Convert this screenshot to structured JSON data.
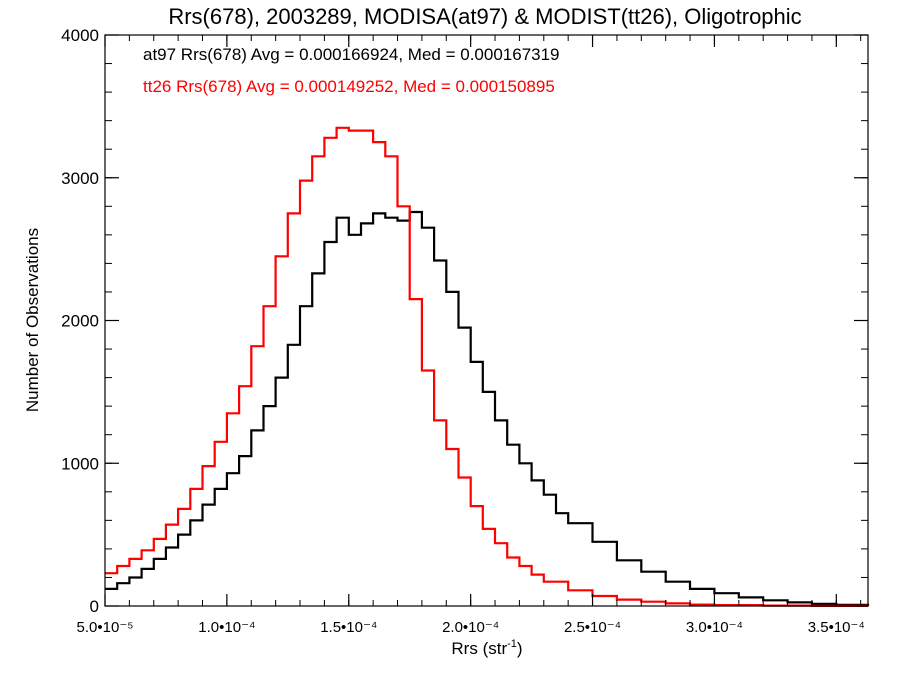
{
  "chart_data": {
    "type": "line",
    "title": "Rrs(678), 2003289, MODISA(at97) & MODIST(tt26), Oligotrophic",
    "xlabel": "Rrs (str",
    "xlabel_sup": "-1",
    "xlabel_close": ")",
    "ylabel": "Number of Observations",
    "xlim": [
      5e-05,
      0.000363
    ],
    "ylim": [
      0,
      4000
    ],
    "x_ticks": [
      {
        "value": 5e-05,
        "label": "5.0•10⁻⁵"
      },
      {
        "value": 0.0001,
        "label": "1.0•10⁻⁴"
      },
      {
        "value": 0.00015,
        "label": "1.5•10⁻⁴"
      },
      {
        "value": 0.0002,
        "label": "2.0•10⁻⁴"
      },
      {
        "value": 0.00025,
        "label": "2.5•10⁻⁴"
      },
      {
        "value": 0.0003,
        "label": "3.0•10⁻⁴"
      },
      {
        "value": 0.00035,
        "label": "3.5•10⁻⁴"
      }
    ],
    "y_ticks": [
      {
        "value": 0,
        "label": "0"
      },
      {
        "value": 1000,
        "label": "1000"
      },
      {
        "value": 2000,
        "label": "2000"
      },
      {
        "value": 3000,
        "label": "3000"
      },
      {
        "value": 4000,
        "label": "4000"
      }
    ],
    "grid": false,
    "series": [
      {
        "name": "at97",
        "color": "#000000",
        "annotation": "at97 Rrs(678) Avg = 0.000166924, Med = 0.000167319",
        "x": [
          5e-05,
          5.5e-05,
          6e-05,
          6.5e-05,
          7e-05,
          7.5e-05,
          8e-05,
          8.5e-05,
          9e-05,
          9.5e-05,
          0.0001,
          0.000105,
          0.00011,
          0.000115,
          0.00012,
          0.000125,
          0.00013,
          0.000135,
          0.00014,
          0.000145,
          0.00015,
          0.000155,
          0.00016,
          0.000165,
          0.00017,
          0.000175,
          0.00018,
          0.000185,
          0.00019,
          0.000195,
          0.0002,
          0.000205,
          0.00021,
          0.000215,
          0.00022,
          0.000225,
          0.00023,
          0.000235,
          0.00024,
          0.00025,
          0.00026,
          0.00027,
          0.00028,
          0.00029,
          0.0003,
          0.00031,
          0.00032,
          0.00033,
          0.00034,
          0.00035,
          0.000363
        ],
        "y": [
          120,
          160,
          200,
          260,
          330,
          410,
          500,
          600,
          710,
          820,
          930,
          1050,
          1230,
          1400,
          1600,
          1830,
          2100,
          2330,
          2550,
          2720,
          2600,
          2680,
          2750,
          2720,
          2700,
          2760,
          2650,
          2420,
          2200,
          1950,
          1710,
          1500,
          1300,
          1130,
          1000,
          880,
          780,
          650,
          580,
          450,
          320,
          240,
          170,
          120,
          90,
          60,
          40,
          25,
          15,
          8,
          3
        ]
      },
      {
        "name": "tt26",
        "color": "#ff0000",
        "annotation": "tt26 Rrs(678) Avg = 0.000149252, Med = 0.000150895",
        "x": [
          5e-05,
          5.5e-05,
          6e-05,
          6.5e-05,
          7e-05,
          7.5e-05,
          8e-05,
          8.5e-05,
          9e-05,
          9.5e-05,
          0.0001,
          0.000105,
          0.00011,
          0.000115,
          0.00012,
          0.000125,
          0.00013,
          0.000135,
          0.00014,
          0.000145,
          0.00015,
          0.000155,
          0.00016,
          0.000165,
          0.00017,
          0.000175,
          0.00018,
          0.000185,
          0.00019,
          0.000195,
          0.0002,
          0.000205,
          0.00021,
          0.000215,
          0.00022,
          0.000225,
          0.00023,
          0.00024,
          0.00025,
          0.00026,
          0.00027,
          0.00028,
          0.00029,
          0.0003,
          0.00032,
          0.00034,
          0.000363
        ],
        "y": [
          230,
          280,
          330,
          390,
          470,
          570,
          680,
          820,
          980,
          1150,
          1350,
          1540,
          1820,
          2100,
          2450,
          2750,
          2980,
          3150,
          3280,
          3350,
          3330,
          3330,
          3250,
          3150,
          2800,
          2150,
          1650,
          1300,
          1100,
          900,
          700,
          540,
          440,
          340,
          280,
          220,
          170,
          110,
          70,
          45,
          30,
          18,
          10,
          6,
          3,
          1,
          0
        ]
      }
    ]
  }
}
